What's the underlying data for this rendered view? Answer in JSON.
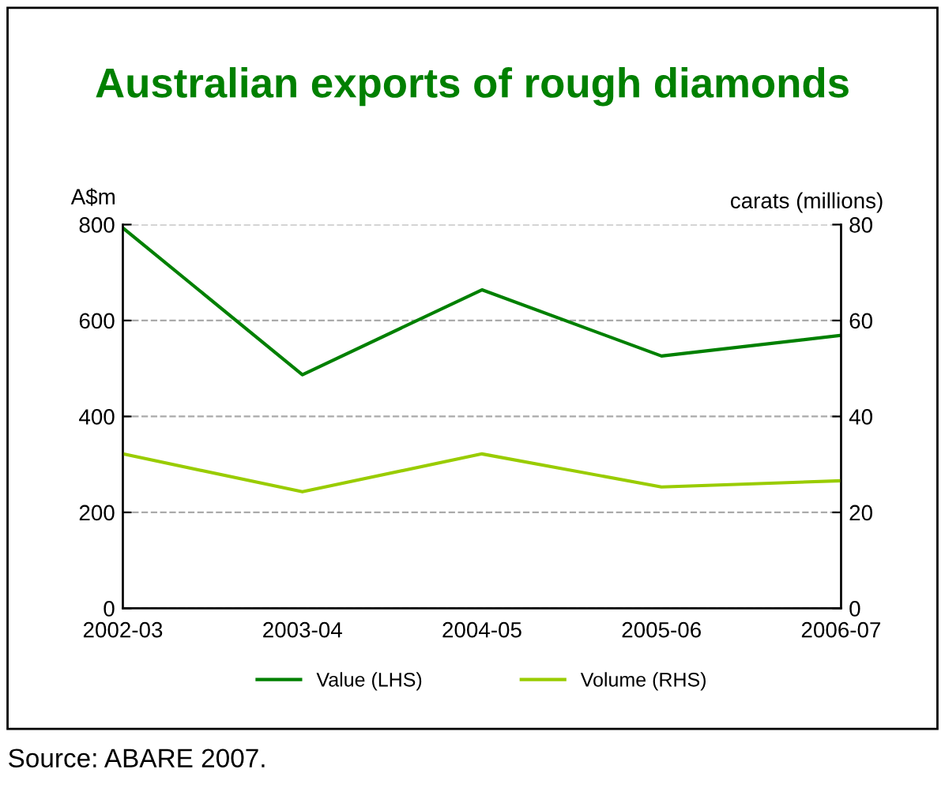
{
  "chart_data": {
    "type": "line",
    "title": "Australian exports of rough diamonds",
    "categories": [
      "2002-03",
      "2003-04",
      "2004-05",
      "2005-06",
      "2006-07"
    ],
    "series": [
      {
        "name": "Value (LHS)",
        "color": "#008000",
        "values": [
          793,
          487,
          664,
          526,
          569
        ]
      },
      {
        "name": "Volume (RHS)",
        "color": "#99cc00",
        "axis": "y2",
        "values": [
          32.2,
          24.3,
          32.2,
          25.3,
          26.6
        ]
      }
    ],
    "ylabel": "A$m",
    "y2label": "carats (millions)",
    "ylim": [
      0,
      800
    ],
    "yticks": [
      0,
      200,
      400,
      600,
      800
    ],
    "y2lim": [
      0,
      80
    ],
    "y2ticks": [
      0,
      20,
      40,
      60,
      80
    ],
    "grid": "y",
    "legend": "bottom",
    "marker": "none",
    "line_style": "solid",
    "annotations": [
      "Source: ABARE 2007."
    ]
  }
}
